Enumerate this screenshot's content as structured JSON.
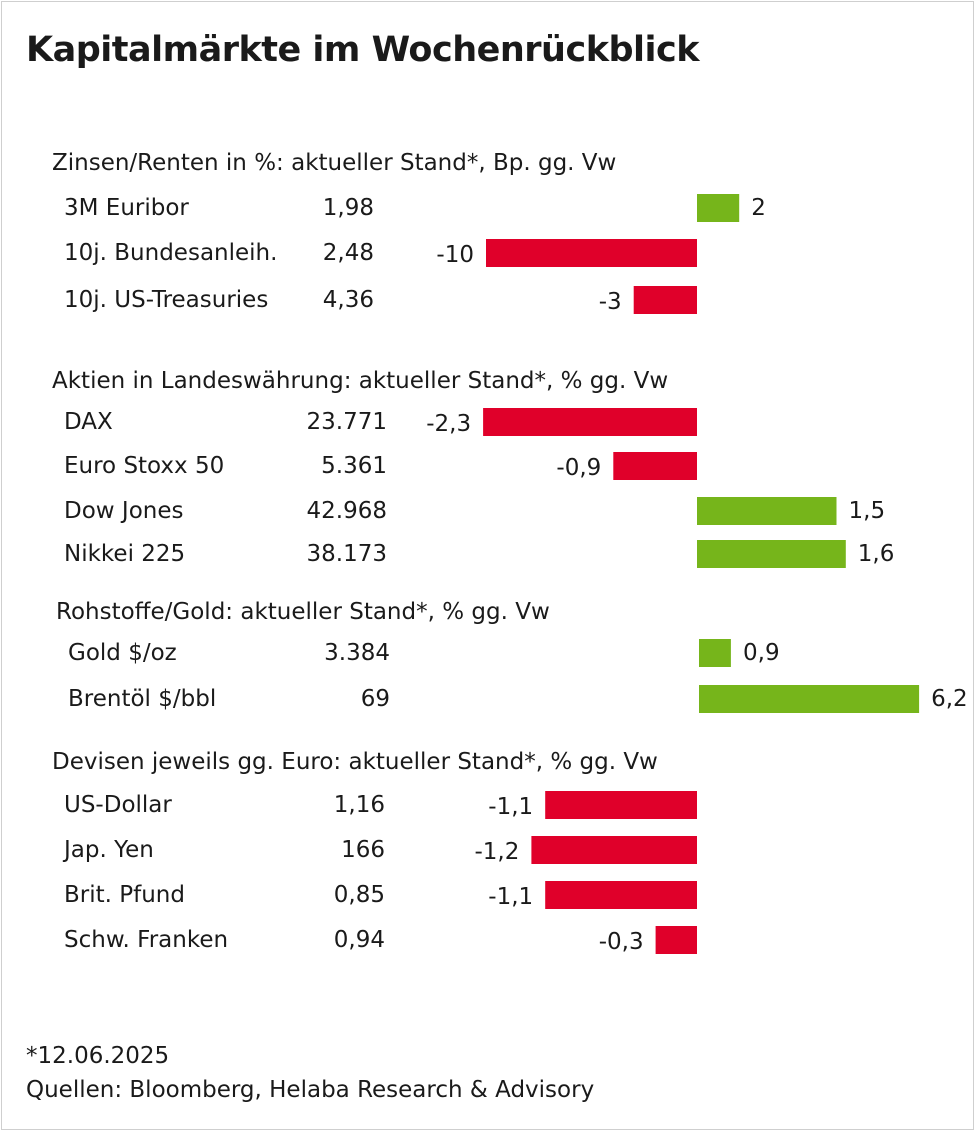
{
  "title": "Kapitalmärkte im Wochenrückblick",
  "colors": {
    "positive": "#76B51B",
    "negative": "#E0002A"
  },
  "chart_data": {
    "type": "bar",
    "orientation": "horizontal",
    "sections": [
      {
        "heading": "Zinsen/Renten in %: aktueller Stand*, Bp. gg. Vw",
        "rows": [
          {
            "label": "3M Euribor",
            "level": "1,98",
            "change": 2,
            "change_label": "2"
          },
          {
            "label": "10j. Bundesanleih.",
            "level": "2,48",
            "change": -10,
            "change_label": "-10"
          },
          {
            "label": "10j. US-Treasuries",
            "level": "4,36",
            "change": -3,
            "change_label": "-3"
          }
        ]
      },
      {
        "heading": "Aktien in Landeswährung: aktueller Stand*, % gg. Vw",
        "rows": [
          {
            "label": "DAX",
            "level": "23.771",
            "change": -2.3,
            "change_label": "-2,3"
          },
          {
            "label": "Euro Stoxx 50",
            "level": "5.361",
            "change": -0.9,
            "change_label": "-0,9"
          },
          {
            "label": "Dow Jones",
            "level": "42.968",
            "change": 1.5,
            "change_label": "1,5"
          },
          {
            "label": "Nikkei 225",
            "level": "38.173",
            "change": 1.6,
            "change_label": "1,6"
          }
        ]
      },
      {
        "heading": "Rohstoffe/Gold: aktueller Stand*, % gg. Vw",
        "rows": [
          {
            "label": "Gold $/oz",
            "level": "3.384",
            "change": 0.9,
            "change_label": "0,9"
          },
          {
            "label": "Brentöl $/bbl",
            "level": "69",
            "change": 6.2,
            "change_label": "6,2"
          }
        ]
      },
      {
        "heading": "Devisen jeweils gg. Euro: aktueller Stand*, % gg. Vw",
        "rows": [
          {
            "label": "US-Dollar",
            "level": "1,16",
            "change": -1.1,
            "change_label": "-1,1"
          },
          {
            "label": "Jap. Yen",
            "level": "166",
            "change": -1.2,
            "change_label": "-1,2"
          },
          {
            "label": "Brit. Pfund",
            "level": "0,85",
            "change": -1.1,
            "change_label": "-1,1"
          },
          {
            "label": "Schw. Franken",
            "level": "0,94",
            "change": -0.3,
            "change_label": "-0,3"
          }
        ]
      }
    ]
  },
  "footnote": "*12.06.2025",
  "source": "Quellen: Bloomberg, Helaba Research & Advisory"
}
